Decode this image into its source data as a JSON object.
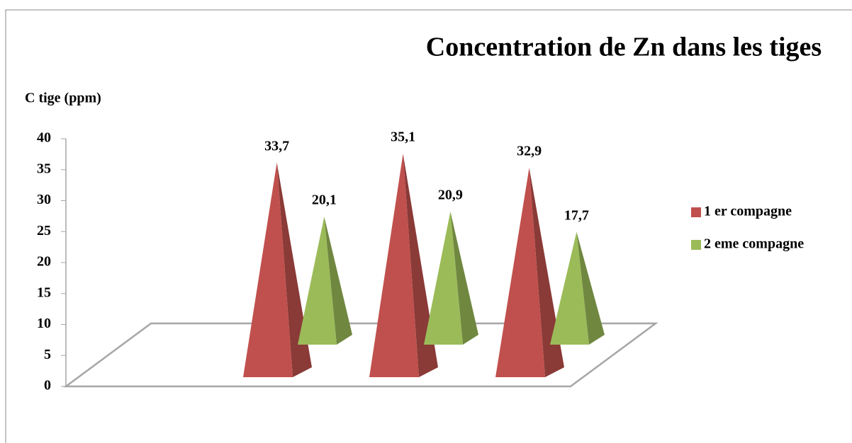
{
  "chart_data": {
    "type": "pyramid3d",
    "title": "Concentration de Zn dans les tiges",
    "y_label": "C tige (ppm)",
    "categories": [
      null,
      null,
      null
    ],
    "series": [
      {
        "name": "1 er compagne",
        "color": "#c0504d",
        "values": [
          33.7,
          35.1,
          32.9
        ],
        "value_labels": [
          "33,7",
          "35,1",
          "32,9"
        ]
      },
      {
        "name": "2 eme compagne",
        "color": "#9bbb59",
        "values": [
          20.1,
          20.9,
          17.7
        ],
        "value_labels": [
          "20,1",
          "20,9",
          "17,7"
        ]
      }
    ],
    "ylim": [
      0,
      40
    ],
    "yticks": [
      0,
      5,
      10,
      15,
      20,
      25,
      30,
      35,
      40
    ],
    "legend": "right"
  }
}
